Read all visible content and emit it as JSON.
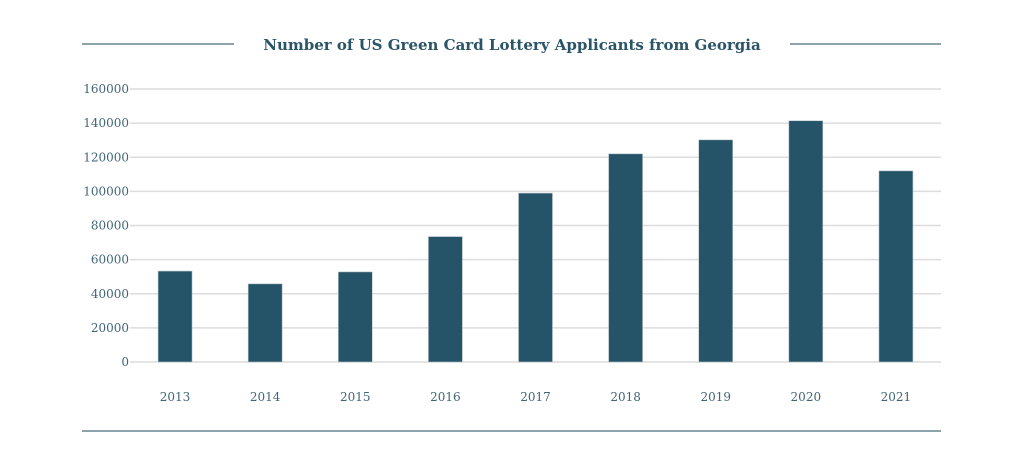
{
  "chart_data": {
    "type": "bar",
    "title": "Number of US Green Card Lottery Applicants from Georgia",
    "xlabel": "",
    "ylabel": "",
    "categories": [
      "2013",
      "2014",
      "2015",
      "2016",
      "2017",
      "2018",
      "2019",
      "2020",
      "2021"
    ],
    "values": [
      53300,
      45800,
      52800,
      73500,
      99000,
      122000,
      130200,
      141400,
      112000
    ],
    "ylim": [
      0,
      160000
    ],
    "yticks": [
      "0",
      "20000",
      "40000",
      "60000",
      "80000",
      "100000",
      "120000",
      "140000",
      "160000"
    ],
    "grid": true,
    "legend": "none",
    "colors": {
      "bar": "#255367",
      "grid": "#dcdcdc",
      "text": "#3f6577",
      "title": "#2a5468",
      "rule": "#8fa3ae"
    }
  }
}
